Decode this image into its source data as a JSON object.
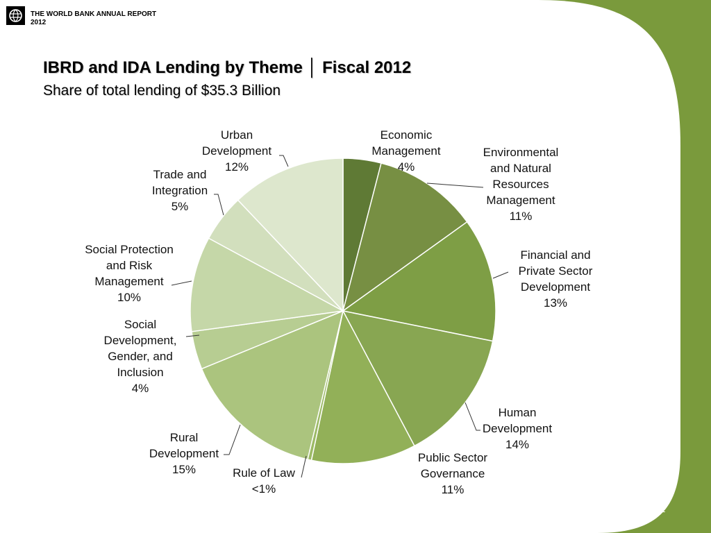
{
  "header": {
    "brand_text": "THE WORLD BANK  ANNUAL REPORT\n2012"
  },
  "page": {
    "title": "IBRD and IDA Lending by Theme │ Fiscal 2012",
    "subtitle": "Share of total lending of $35.3 Billion",
    "page_number": "12"
  },
  "colors": {
    "frame_green": "#7a9a3c",
    "slice_edge": "#ffffff"
  },
  "chart_data": {
    "type": "pie",
    "title": "IBRD and IDA Lending by Theme │ Fiscal 2012",
    "subtitle": "Share of total lending of $35.3 Billion",
    "start": "12 o'clock",
    "direction": "clockwise",
    "slices": [
      {
        "label": "Economic Management",
        "display": "4%",
        "value": 4,
        "color": "#5f7a35",
        "label_lines": [
          "Economic",
          "Management",
          "4%"
        ]
      },
      {
        "label": "Environmental and Natural Resources Management",
        "display": "11%",
        "value": 11,
        "color": "#778f43",
        "label_lines": [
          "Environmental",
          "and Natural",
          "Resources",
          "Management",
          "11%"
        ]
      },
      {
        "label": "Financial and Private Sector Development",
        "display": "13%",
        "value": 13,
        "color": "#7e9e45",
        "label_lines": [
          "Financial and",
          "Private Sector",
          "Development",
          "13%"
        ]
      },
      {
        "label": "Human Development",
        "display": "14%",
        "value": 14,
        "color": "#88a652",
        "label_lines": [
          "Human",
          "Development",
          "14%"
        ]
      },
      {
        "label": "Public Sector Governance",
        "display": "11%",
        "value": 11,
        "color": "#92b058",
        "label_lines": [
          "Public Sector",
          "Governance",
          "11%"
        ]
      },
      {
        "label": "Rule of Law",
        "display": "<1%",
        "value": 0.4,
        "color": "#9cba66",
        "label_lines": [
          "Rule of Law",
          "<1%"
        ]
      },
      {
        "label": "Rural Development",
        "display": "15%",
        "value": 15,
        "color": "#abc47e",
        "label_lines": [
          "Rural",
          "Development",
          "15%"
        ]
      },
      {
        "label": "Social Development, Gender, and Inclusion",
        "display": "4%",
        "value": 4,
        "color": "#b7cd92",
        "label_lines": [
          "Social",
          "Development,",
          "Gender, and",
          "Inclusion",
          "4%"
        ]
      },
      {
        "label": "Social Protection and Risk Management",
        "display": "10%",
        "value": 10,
        "color": "#c5d7a8",
        "label_lines": [
          "Social Protection",
          "and Risk",
          "Management",
          "10%"
        ]
      },
      {
        "label": "Trade and Integration",
        "display": "5%",
        "value": 5,
        "color": "#d2dfbd",
        "label_lines": [
          "Trade and",
          "Integration",
          "5%"
        ]
      },
      {
        "label": "Urban Development",
        "display": "12%",
        "value": 12,
        "color": "#dde7cd",
        "label_lines": [
          "Urban",
          "Development",
          "12%"
        ]
      }
    ]
  }
}
